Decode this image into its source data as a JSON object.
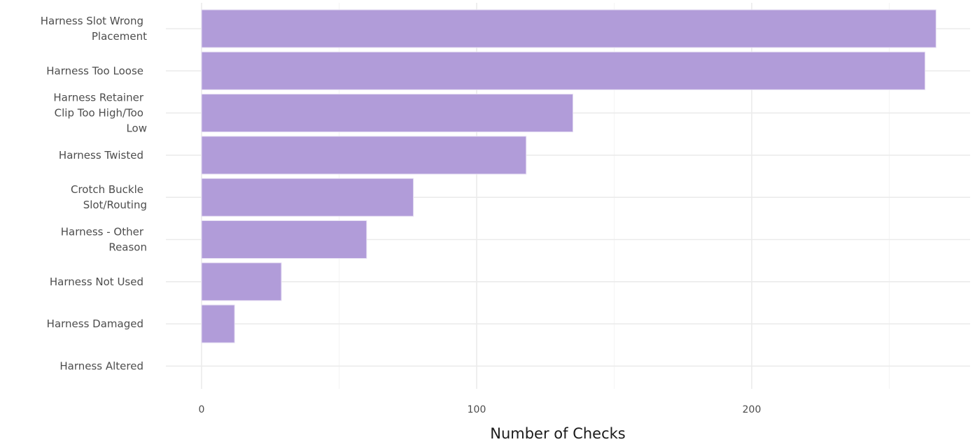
{
  "chart_data": {
    "type": "bar",
    "orientation": "horizontal",
    "xlabel": "Number of Checks",
    "ylabel": "",
    "xlim": [
      0,
      280
    ],
    "x_ticks": [
      0,
      100,
      200
    ],
    "grid": true,
    "bar_color": "#b19cd9",
    "categories": [
      "Harness Slot Wrong Placement",
      "Harness Too Loose",
      "Harness Retainer Clip Too High/Too Low",
      "Harness Twisted",
      "Crotch Buckle Slot/Routing",
      "Harness - Other Reason",
      "Harness Not Used",
      "Harness Damaged",
      "Harness Altered"
    ],
    "category_lines": [
      [
        "Harness Slot Wrong",
        "Placement"
      ],
      [
        "Harness Too Loose"
      ],
      [
        "Harness Retainer",
        "Clip Too High/Too",
        "Low"
      ],
      [
        "Harness Twisted"
      ],
      [
        "Crotch Buckle",
        "Slot/Routing"
      ],
      [
        "Harness - Other",
        "Reason"
      ],
      [
        "Harness Not Used"
      ],
      [
        "Harness Damaged"
      ],
      [
        "Harness Altered"
      ]
    ],
    "values": [
      267,
      263,
      135,
      118,
      77,
      60,
      29,
      12,
      0
    ]
  }
}
